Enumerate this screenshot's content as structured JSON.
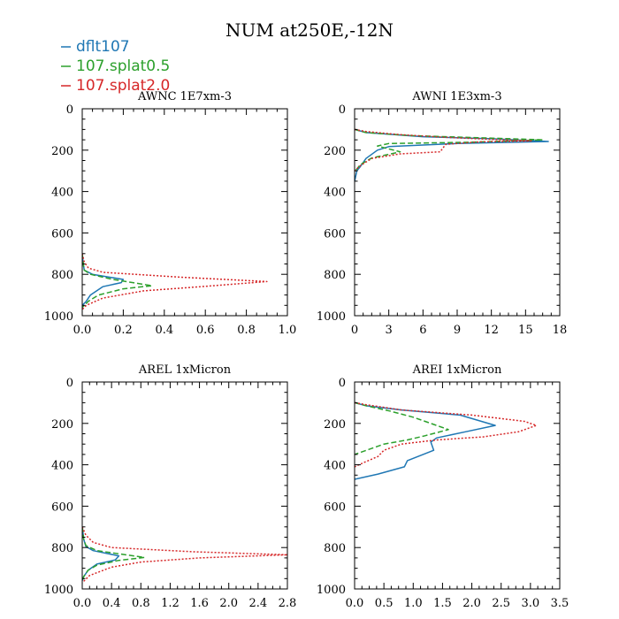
{
  "title": "NUM at250E,-12N",
  "legend": [
    {
      "name": "dflt107",
      "color": "#1f77b4",
      "dash": "solid"
    },
    {
      "name": "107.splat0.5",
      "color": "#2ca02c",
      "dash": "dashed"
    },
    {
      "name": "107.splat2.0",
      "color": "#d62728",
      "dash": "dotted"
    }
  ],
  "chart_data": [
    {
      "type": "line",
      "title": "AWNC  1E7xm-3",
      "xlim": [
        0,
        1.0
      ],
      "ylim": [
        1000,
        0
      ],
      "xticks": [
        0.0,
        0.2,
        0.4,
        0.6,
        0.8,
        1.0
      ],
      "xtick_labels": [
        "0.0",
        "0.2",
        "0.4",
        "0.6",
        "0.8",
        "1.0"
      ],
      "yticks": [
        0,
        200,
        400,
        600,
        800,
        1000
      ],
      "ytick_labels": [
        "0",
        "200",
        "400",
        "600",
        "800",
        "1000"
      ],
      "series": [
        {
          "name": "dflt107",
          "points": [
            [
              0,
              700
            ],
            [
              0.005,
              750
            ],
            [
              0.01,
              780
            ],
            [
              0.05,
              800
            ],
            [
              0.2,
              825
            ],
            [
              0.19,
              840
            ],
            [
              0.1,
              860
            ],
            [
              0.04,
              900
            ],
            [
              0.02,
              930
            ],
            [
              0,
              950
            ]
          ]
        },
        {
          "name": "107.splat0.5",
          "points": [
            [
              0,
              700
            ],
            [
              0.005,
              750
            ],
            [
              0.01,
              780
            ],
            [
              0.04,
              800
            ],
            [
              0.15,
              825
            ],
            [
              0.34,
              855
            ],
            [
              0.2,
              870
            ],
            [
              0.08,
              900
            ],
            [
              0.03,
              930
            ],
            [
              0,
              960
            ]
          ]
        },
        {
          "name": "107.splat2.0",
          "points": [
            [
              0,
              700
            ],
            [
              0.01,
              740
            ],
            [
              0.03,
              770
            ],
            [
              0.1,
              790
            ],
            [
              0.5,
              815
            ],
            [
              0.9,
              835
            ],
            [
              0.6,
              858
            ],
            [
              0.3,
              880
            ],
            [
              0.1,
              915
            ],
            [
              0.02,
              950
            ],
            [
              0,
              970
            ]
          ]
        }
      ]
    },
    {
      "type": "line",
      "title": "AWNI  1E3xm-3",
      "xlim": [
        0,
        18
      ],
      "ylim": [
        1000,
        0
      ],
      "xticks": [
        0,
        3,
        6,
        9,
        12,
        15,
        18
      ],
      "xtick_labels": [
        "0",
        "3",
        "6",
        "9",
        "12",
        "15",
        "18"
      ],
      "yticks": [
        0,
        200,
        400,
        600,
        800,
        1000
      ],
      "ytick_labels": [
        "0",
        "200",
        "400",
        "600",
        "800",
        "1000"
      ],
      "series": [
        {
          "name": "dflt107",
          "points": [
            [
              0,
              100
            ],
            [
              1,
              115
            ],
            [
              6,
              135
            ],
            [
              12,
              145
            ],
            [
              17,
              158
            ],
            [
              9,
              168
            ],
            [
              3,
              183
            ],
            [
              2,
              200
            ],
            [
              1,
              240
            ],
            [
              0.5,
              280
            ],
            [
              0.2,
              300
            ],
            [
              0,
              350
            ]
          ]
        },
        {
          "name": "107.splat0.5",
          "points": [
            [
              0,
              100
            ],
            [
              1,
              115
            ],
            [
              5,
              130
            ],
            [
              11,
              140
            ],
            [
              16.5,
              150
            ],
            [
              10,
              162
            ],
            [
              3,
              168
            ],
            [
              2,
              180
            ],
            [
              4,
              208
            ],
            [
              1.5,
              238
            ],
            [
              0.5,
              270
            ],
            [
              0,
              305
            ]
          ]
        },
        {
          "name": "107.splat2.0",
          "points": [
            [
              0,
              100
            ],
            [
              1,
              110
            ],
            [
              4,
              125
            ],
            [
              8,
              138
            ],
            [
              12,
              148
            ],
            [
              15.5,
              155
            ],
            [
              11,
              160
            ],
            [
              8,
              172
            ],
            [
              7.5,
              208
            ],
            [
              4,
              218
            ],
            [
              1.5,
              240
            ],
            [
              0.5,
              275
            ],
            [
              0,
              300
            ]
          ]
        }
      ]
    },
    {
      "type": "line",
      "title": "AREL  1xMicron",
      "xlim": [
        0,
        2.8
      ],
      "ylim": [
        1000,
        0
      ],
      "xticks": [
        0.0,
        0.4,
        0.8,
        1.2,
        1.6,
        2.0,
        2.4,
        2.8
      ],
      "xtick_labels": [
        "0.0",
        "0.4",
        "0.8",
        "1.2",
        "1.6",
        "2.0",
        "2.4",
        "2.8"
      ],
      "yticks": [
        0,
        200,
        400,
        600,
        800,
        1000
      ],
      "ytick_labels": [
        "0",
        "200",
        "400",
        "600",
        "800",
        "1000"
      ],
      "series": [
        {
          "name": "dflt107",
          "points": [
            [
              0,
              700
            ],
            [
              0.02,
              760
            ],
            [
              0.05,
              795
            ],
            [
              0.15,
              815
            ],
            [
              0.5,
              840
            ],
            [
              0.45,
              860
            ],
            [
              0.2,
              880
            ],
            [
              0.08,
              910
            ],
            [
              0.02,
              940
            ],
            [
              0,
              960
            ]
          ]
        },
        {
          "name": "107.splat0.5",
          "points": [
            [
              0,
              700
            ],
            [
              0.02,
              760
            ],
            [
              0.05,
              790
            ],
            [
              0.2,
              815
            ],
            [
              0.85,
              848
            ],
            [
              0.5,
              862
            ],
            [
              0.2,
              885
            ],
            [
              0.08,
              910
            ],
            [
              0.02,
              940
            ],
            [
              0,
              965
            ]
          ]
        },
        {
          "name": "107.splat2.0",
          "points": [
            [
              0,
              700
            ],
            [
              0.05,
              740
            ],
            [
              0.15,
              775
            ],
            [
              0.4,
              800
            ],
            [
              1.5,
              820
            ],
            [
              2.8,
              835
            ],
            [
              1.6,
              850
            ],
            [
              0.8,
              870
            ],
            [
              0.4,
              895
            ],
            [
              0.1,
              935
            ],
            [
              0,
              970
            ]
          ]
        }
      ]
    },
    {
      "type": "line",
      "title": "AREI  1xMicron",
      "xlim": [
        0,
        3.5
      ],
      "ylim": [
        1000,
        0
      ],
      "xticks": [
        0.0,
        0.5,
        1.0,
        1.5,
        2.0,
        2.5,
        3.0,
        3.5
      ],
      "xtick_labels": [
        "0.0",
        "0.5",
        "1.0",
        "1.5",
        "2.0",
        "2.5",
        "3.0",
        "3.5"
      ],
      "yticks": [
        0,
        200,
        400,
        600,
        800,
        1000
      ],
      "ytick_labels": [
        "0",
        "200",
        "400",
        "600",
        "800",
        "1000"
      ],
      "series": [
        {
          "name": "dflt107",
          "points": [
            [
              0,
              100
            ],
            [
              0.2,
              115
            ],
            [
              0.8,
              135
            ],
            [
              1.8,
              160
            ],
            [
              2.4,
              210
            ],
            [
              1.9,
              240
            ],
            [
              1.4,
              270
            ],
            [
              1.3,
              290
            ],
            [
              1.35,
              330
            ],
            [
              0.9,
              380
            ],
            [
              0.85,
              410
            ],
            [
              0.4,
              445
            ],
            [
              0,
              470
            ]
          ]
        },
        {
          "name": "107.splat0.5",
          "points": [
            [
              0,
              100
            ],
            [
              0.2,
              115
            ],
            [
              0.6,
              140
            ],
            [
              1.0,
              170
            ],
            [
              1.6,
              230
            ],
            [
              1.2,
              260
            ],
            [
              0.9,
              280
            ],
            [
              0.5,
              300
            ],
            [
              0.2,
              330
            ],
            [
              0,
              350
            ]
          ]
        },
        {
          "name": "107.splat2.0",
          "points": [
            [
              0,
              100
            ],
            [
              0.2,
              110
            ],
            [
              0.8,
              135
            ],
            [
              2.0,
              160
            ],
            [
              2.9,
              190
            ],
            [
              3.1,
              210
            ],
            [
              2.8,
              240
            ],
            [
              2.2,
              265
            ],
            [
              1.4,
              280
            ],
            [
              0.8,
              300
            ],
            [
              0.5,
              330
            ],
            [
              0.4,
              360
            ],
            [
              0.15,
              390
            ],
            [
              0,
              410
            ]
          ]
        }
      ]
    }
  ]
}
